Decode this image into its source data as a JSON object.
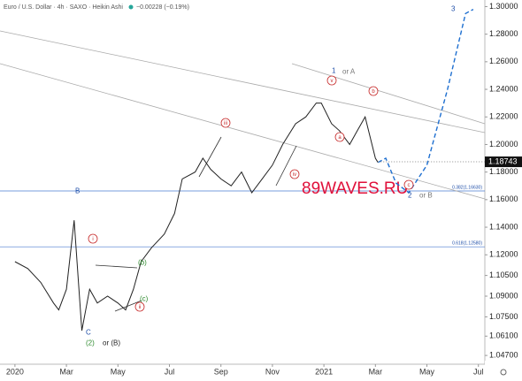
{
  "chart_data": {
    "type": "line",
    "title": "Euro / U.S. Dollar · 4h · SAXO · Heikin Ashi",
    "subtitle": "−0.00228 (−0.19%)",
    "watermark": "89WAVES.RU",
    "series": [
      {
        "color": "#222222",
        "x": [
          0,
          0.5,
          1,
          1.5,
          1.7,
          2,
          2.3,
          2.6,
          2.9,
          3.2,
          3.6,
          4,
          4.3,
          4.6,
          4.9,
          5.3,
          5.8,
          6.2,
          6.5,
          7,
          7.3,
          7.6,
          8,
          8.4,
          8.8,
          9.2,
          9.6,
          10,
          10.4,
          10.9,
          11.3,
          11.7,
          11.9,
          12.3,
          12.6,
          13,
          13.3,
          13.6,
          13.8,
          14,
          14.1
        ],
        "values": [
          1.115,
          1.11,
          1.1,
          1.085,
          1.08,
          1.095,
          1.145,
          1.065,
          1.095,
          1.085,
          1.09,
          1.085,
          1.08,
          1.095,
          1.115,
          1.125,
          1.135,
          1.15,
          1.175,
          1.18,
          1.19,
          1.182,
          1.175,
          1.17,
          1.18,
          1.165,
          1.175,
          1.185,
          1.2,
          1.215,
          1.22,
          1.23,
          1.23,
          1.215,
          1.21,
          1.2,
          1.21,
          1.22,
          1.205,
          1.19,
          1.187
        ]
      },
      {
        "color": "#1e6fd0",
        "dashed": true,
        "x": [
          14.1,
          14.4,
          14.8,
          15.3,
          16,
          16.8,
          17.5,
          17.8
        ],
        "values": [
          1.187,
          1.19,
          1.172,
          1.165,
          1.185,
          1.24,
          1.295,
          1.298
        ]
      }
    ],
    "last_price": 1.18743,
    "fib_levels": [
      {
        "value": 1.1663,
        "label": "0.382(1.16630)"
      },
      {
        "value": 1.1258,
        "label": "0.618(1.12580)"
      }
    ],
    "annotations": [
      "1",
      "or A",
      "v",
      "iii",
      "iv",
      "i",
      "ii",
      "(b)",
      "(c)",
      "a",
      "b",
      "c",
      "B",
      "C",
      "(2)",
      "or (B)",
      "2",
      "or B",
      "3"
    ],
    "xlim": [
      -0.58,
      18.25
    ],
    "xticks": [
      {
        "value": 0,
        "label": "2020"
      },
      {
        "value": 2,
        "label": "Mar"
      },
      {
        "value": 4,
        "label": "May"
      },
      {
        "value": 6,
        "label": "Jul"
      },
      {
        "value": 8,
        "label": "Sep"
      },
      {
        "value": 10,
        "label": "Nov"
      },
      {
        "value": 12,
        "label": "2021"
      },
      {
        "value": 14,
        "label": "Mar"
      },
      {
        "value": 16,
        "label": "May"
      },
      {
        "value": 18,
        "label": "Jul"
      }
    ],
    "ylim": [
      1.0445,
      1.3035
    ],
    "yticks": [
      {
        "value": 1.3,
        "label": "1.30000"
      },
      {
        "value": 1.28,
        "label": "1.28000"
      },
      {
        "value": 1.26,
        "label": "1.26000"
      },
      {
        "value": 1.24,
        "label": "1.24000"
      },
      {
        "value": 1.22,
        "label": "1.22000"
      },
      {
        "value": 1.2,
        "label": "1.20000"
      },
      {
        "value": 1.18,
        "label": "1.18000"
      },
      {
        "value": 1.16,
        "label": "1.16000"
      },
      {
        "value": 1.14,
        "label": "1.14000"
      },
      {
        "value": 1.12,
        "label": "1.12000"
      },
      {
        "value": 1.105,
        "label": "1.10500"
      },
      {
        "value": 1.09,
        "label": "1.09000"
      },
      {
        "value": 1.075,
        "label": "1.07500"
      },
      {
        "value": 1.061,
        "label": "1.06100"
      },
      {
        "value": 1.047,
        "label": "1.04700"
      }
    ]
  }
}
